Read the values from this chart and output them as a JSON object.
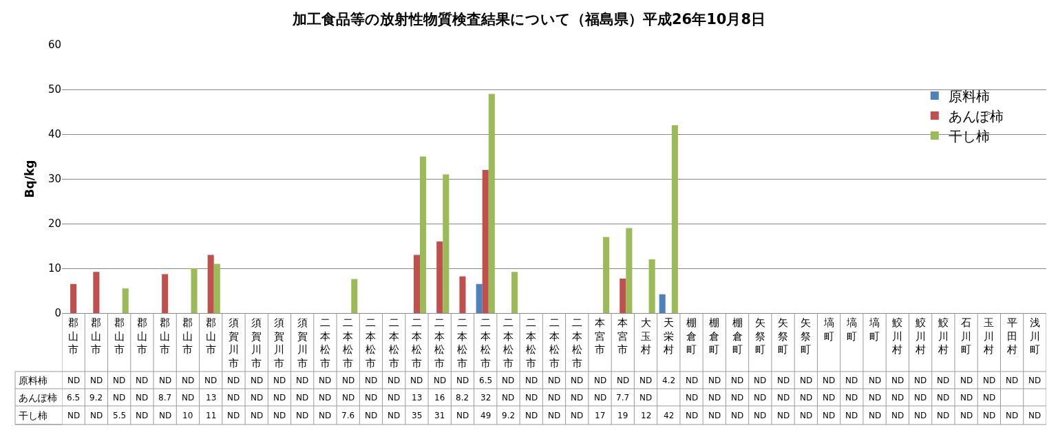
{
  "chart_data": {
    "type": "bar",
    "title": "加工食品等の放射性物質検査結果について（福島県）平成26年10月8日",
    "ylabel": "Bq/kg",
    "categories": [
      "郡山市",
      "郡山市",
      "郡山市",
      "郡山市",
      "郡山市",
      "郡山市",
      "郡山市",
      "須賀川市",
      "須賀川市",
      "須賀川市",
      "須賀川市",
      "二本松市",
      "二本松市",
      "二本松市",
      "二本松市",
      "二本松市",
      "二本松市",
      "二本松市",
      "二本松市",
      "二本松市",
      "二本松市",
      "二本松市",
      "二本松市",
      "本宮市",
      "本宮市",
      "大玉村",
      "天栄村",
      "棚倉町",
      "棚倉町",
      "棚倉町",
      "矢祭町",
      "矢祭町",
      "矢祭町",
      "塙町",
      "塙町",
      "塙町",
      "鮫川村",
      "鮫川村",
      "鮫川村",
      "石川町",
      "玉川村",
      "平田村",
      "浅川町"
    ],
    "series": [
      {
        "name": "原料柿",
        "color": "#4f81bd",
        "values": [
          null,
          null,
          null,
          null,
          null,
          null,
          null,
          null,
          null,
          null,
          null,
          null,
          null,
          null,
          null,
          null,
          null,
          null,
          6.5,
          null,
          null,
          null,
          null,
          null,
          null,
          null,
          4.2,
          null,
          null,
          null,
          null,
          null,
          null,
          null,
          null,
          null,
          null,
          null,
          null,
          null,
          null,
          null,
          null
        ],
        "value_labels": [
          "ND",
          "ND",
          "ND",
          "ND",
          "ND",
          "ND",
          "ND",
          "ND",
          "ND",
          "ND",
          "ND",
          "ND",
          "ND",
          "ND",
          "ND",
          "ND",
          "ND",
          "ND",
          "6.5",
          "ND",
          "ND",
          "ND",
          "ND",
          "ND",
          "ND",
          "ND",
          "4.2",
          "ND",
          "ND",
          "ND",
          "ND",
          "ND",
          "ND",
          "ND",
          "ND",
          "ND",
          "ND",
          "ND",
          "ND",
          "ND",
          "ND",
          "ND",
          "ND"
        ]
      },
      {
        "name": "あんぽ柿",
        "color": "#c0504d",
        "values": [
          6.5,
          9.2,
          null,
          null,
          8.7,
          null,
          13,
          null,
          null,
          null,
          null,
          null,
          null,
          null,
          null,
          13,
          16,
          8.2,
          32,
          null,
          null,
          null,
          null,
          null,
          7.7,
          null,
          null,
          null,
          null,
          null,
          null,
          null,
          null,
          null,
          null,
          null,
          null,
          null,
          null,
          null,
          null,
          null,
          null
        ],
        "value_labels": [
          "6.5",
          "9.2",
          "ND",
          "ND",
          "8.7",
          "ND",
          "13",
          "ND",
          "ND",
          "ND",
          "ND",
          "ND",
          "ND",
          "ND",
          "ND",
          "13",
          "16",
          "8.2",
          "32",
          "ND",
          "ND",
          "ND",
          "ND",
          "ND",
          "7.7",
          "ND",
          null,
          "ND",
          "ND",
          "ND",
          "ND",
          "ND",
          "ND",
          "ND",
          "ND",
          "ND",
          "ND",
          "ND",
          "ND",
          "ND",
          "ND",
          null,
          null
        ]
      },
      {
        "name": "干し柿",
        "color": "#9bbb59",
        "values": [
          null,
          null,
          5.5,
          null,
          null,
          10,
          11,
          null,
          null,
          null,
          null,
          null,
          7.6,
          null,
          null,
          35,
          31,
          null,
          49,
          9.2,
          null,
          null,
          null,
          17,
          19,
          12,
          42,
          null,
          null,
          null,
          null,
          null,
          null,
          null,
          null,
          null,
          null,
          null,
          null,
          null,
          null,
          null,
          null
        ],
        "value_labels": [
          "ND",
          "ND",
          "5.5",
          "ND",
          "ND",
          "10",
          "11",
          "ND",
          "ND",
          "ND",
          "ND",
          "ND",
          "7.6",
          "ND",
          "ND",
          "35",
          "31",
          "ND",
          "49",
          "9.2",
          "ND",
          "ND",
          "ND",
          "17",
          "19",
          "12",
          "42",
          "ND",
          "ND",
          "ND",
          "ND",
          "ND",
          "ND",
          "ND",
          "ND",
          "ND",
          "ND",
          "ND",
          "ND",
          "ND",
          "ND",
          "ND",
          "ND"
        ]
      }
    ],
    "ylim": [
      0,
      60
    ],
    "yticks": [
      0,
      10,
      20,
      30,
      40,
      50,
      60
    ],
    "grid": "y",
    "legend": "top right"
  }
}
